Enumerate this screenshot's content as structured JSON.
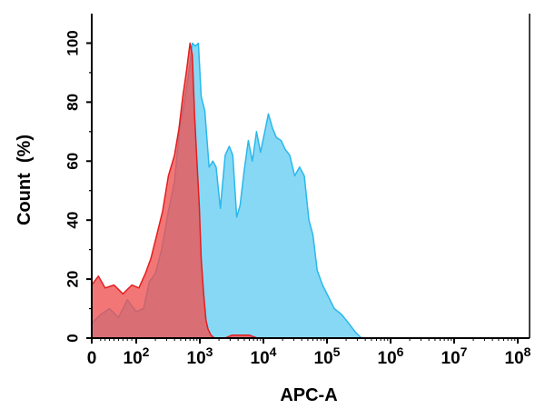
{
  "chart_data": {
    "type": "area",
    "title": "",
    "xlabel": "APC-A",
    "ylabel": "Count  (%)",
    "xscale": "log",
    "xlim": [
      0,
      100000000
    ],
    "ylim": [
      0,
      110
    ],
    "grid": false,
    "x_ticks": [
      {
        "value": 0,
        "base": "0",
        "exp": ""
      },
      {
        "value": 100,
        "base": "10",
        "exp": "2"
      },
      {
        "value": 1000,
        "base": "10",
        "exp": "3"
      },
      {
        "value": 10000,
        "base": "10",
        "exp": "4"
      },
      {
        "value": 100000,
        "base": "10",
        "exp": "5"
      },
      {
        "value": 1000000,
        "base": "10",
        "exp": "6"
      },
      {
        "value": 10000000,
        "base": "10",
        "exp": "7"
      },
      {
        "value": 100000000,
        "base": "10",
        "exp": "8"
      }
    ],
    "y_ticks": [
      {
        "value": 0,
        "label": "0"
      },
      {
        "value": 20,
        "label": "20"
      },
      {
        "value": 40,
        "label": "40"
      },
      {
        "value": 60,
        "label": "60"
      },
      {
        "value": 80,
        "label": "80"
      },
      {
        "value": 100,
        "label": "100"
      }
    ],
    "series": [
      {
        "color": "#87d8f5",
        "stroke": "#29b8ec",
        "points": [
          [
            0,
            5
          ],
          [
            20,
            8
          ],
          [
            40,
            10
          ],
          [
            60,
            7
          ],
          [
            80,
            13
          ],
          [
            100,
            9
          ],
          [
            130,
            10
          ],
          [
            160,
            19
          ],
          [
            200,
            22
          ],
          [
            250,
            30
          ],
          [
            320,
            43
          ],
          [
            400,
            53
          ],
          [
            480,
            71
          ],
          [
            550,
            78
          ],
          [
            620,
            85
          ],
          [
            700,
            93
          ],
          [
            760,
            100
          ],
          [
            850,
            99
          ],
          [
            950,
            100
          ],
          [
            1050,
            82
          ],
          [
            1200,
            77
          ],
          [
            1400,
            58
          ],
          [
            1600,
            60
          ],
          [
            1800,
            58
          ],
          [
            2100,
            44
          ],
          [
            2500,
            62
          ],
          [
            2900,
            65
          ],
          [
            3300,
            62
          ],
          [
            3800,
            41
          ],
          [
            4300,
            45
          ],
          [
            5000,
            57
          ],
          [
            5800,
            67
          ],
          [
            6700,
            60
          ],
          [
            7800,
            70
          ],
          [
            9000,
            63
          ],
          [
            10500,
            70
          ],
          [
            12000,
            76
          ],
          [
            14000,
            71
          ],
          [
            16000,
            68
          ],
          [
            19000,
            67
          ],
          [
            22000,
            64
          ],
          [
            26000,
            62
          ],
          [
            31000,
            55
          ],
          [
            37000,
            58
          ],
          [
            44000,
            55
          ],
          [
            52000,
            40
          ],
          [
            60000,
            35
          ],
          [
            70000,
            23
          ],
          [
            85000,
            18
          ],
          [
            100000,
            15
          ],
          [
            130000,
            10
          ],
          [
            170000,
            8
          ],
          [
            220000,
            5
          ],
          [
            280000,
            2
          ],
          [
            350000,
            0
          ]
        ]
      },
      {
        "color": "rgba(240,80,80,0.78)",
        "stroke": "#e31e1e",
        "points": [
          [
            0,
            18
          ],
          [
            15,
            21
          ],
          [
            30,
            17
          ],
          [
            50,
            18
          ],
          [
            70,
            15
          ],
          [
            90,
            18
          ],
          [
            110,
            17
          ],
          [
            140,
            22
          ],
          [
            170,
            27
          ],
          [
            210,
            35
          ],
          [
            260,
            43
          ],
          [
            320,
            55
          ],
          [
            400,
            62
          ],
          [
            470,
            71
          ],
          [
            540,
            82
          ],
          [
            620,
            91
          ],
          [
            700,
            100
          ],
          [
            760,
            96
          ],
          [
            830,
            75
          ],
          [
            900,
            60
          ],
          [
            980,
            45
          ],
          [
            1050,
            27
          ],
          [
            1150,
            15
          ],
          [
            1250,
            6
          ],
          [
            1350,
            3
          ],
          [
            1500,
            1
          ],
          [
            1700,
            0
          ],
          [
            2500,
            0
          ],
          [
            3200,
            1
          ],
          [
            4500,
            1
          ],
          [
            6000,
            1
          ],
          [
            8000,
            0
          ]
        ]
      }
    ]
  }
}
